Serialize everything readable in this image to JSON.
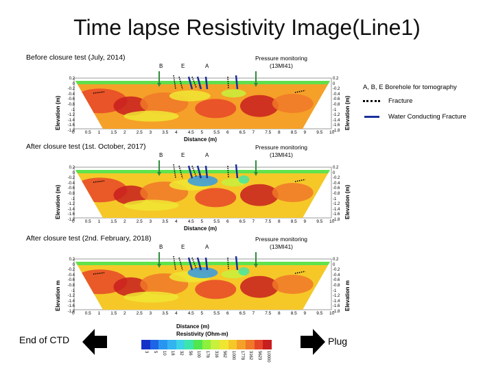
{
  "title": "Time lapse Resistivity Image(Line1)",
  "panels": [
    {
      "caption": "Before closure test (July, 2014)",
      "pressure_monitoring": "Pressure monitoring",
      "station": "(13MI41)",
      "borehole_labels": [
        "B",
        "E",
        "A"
      ],
      "y_axis_label": "Elevation (m)",
      "y_ticks": [
        "0.2",
        "0",
        "-0.2",
        "-0.4",
        "-0.6",
        "-0.8",
        "-1",
        "-1.2",
        "-1.4",
        "-1.6",
        "-1.8"
      ],
      "x_axis_label": "Distance (m)",
      "x_ticks": [
        "0",
        "0.5",
        "1",
        "1.5",
        "2",
        "2.5",
        "3",
        "3.5",
        "4",
        "4.5",
        "5",
        "5.5",
        "6",
        "6.5",
        "7",
        "7.5",
        "8",
        "8.5",
        "9",
        "9.5",
        "10"
      ]
    },
    {
      "caption": "After closure test (1st. October, 2017)",
      "pressure_monitoring": "Pressure monitoring",
      "station": "(13MI41)",
      "borehole_labels": [
        "B",
        "E",
        "A"
      ],
      "y_axis_label": "Elevation (m)",
      "y_ticks": [
        "0.2",
        "0",
        "-0.2",
        "-0.4",
        "-0.6",
        "-0.8",
        "-1",
        "-1.2",
        "-1.4",
        "-1.6",
        "-1.8"
      ],
      "x_axis_label": "Distance (m)",
      "x_ticks": [
        "0",
        "0.5",
        "1",
        "1.5",
        "2",
        "2.5",
        "3",
        "3.5",
        "4",
        "4.5",
        "5",
        "5.5",
        "6",
        "6.5",
        "7",
        "7.5",
        "8",
        "8.5",
        "9",
        "9.5",
        "10"
      ]
    },
    {
      "caption": "After closure test (2nd. February, 2018)",
      "pressure_monitoring": "Pressure monitoring",
      "station": "(13MI41)",
      "borehole_labels": [
        "B",
        "E",
        "A"
      ],
      "y_axis_label": "Elevation m",
      "y_ticks": [
        "0.2",
        "0",
        "-0.2",
        "-0.4",
        "-0.6",
        "-0.8",
        "-1",
        "-1.2",
        "-1.4",
        "-1.6",
        "-1.8"
      ],
      "x_axis_label": "Distance (m)",
      "x_ticks": [
        "0",
        "0.5",
        "1",
        "1.5",
        "2",
        "2.5",
        "3",
        "3.5",
        "4",
        "4.5",
        "5",
        "5.5",
        "6",
        "6.5",
        "7",
        "7.5",
        "8",
        "8.5",
        "9",
        "9.5",
        "10"
      ]
    }
  ],
  "legend": {
    "borehole": "A, B, E  Borehole for tomography",
    "fracture": "Fracture",
    "water_fracture": "Water Conducting Fracture"
  },
  "colorbar": {
    "title": "Resistivity (Ohm-m)",
    "labels": [
      "3",
      "5",
      "10",
      "18",
      "32",
      "56",
      "100",
      "178",
      "316",
      "562",
      "1000",
      "1778",
      "3162",
      "5623",
      "10000"
    ],
    "colors": [
      "#1432c8",
      "#1e64e6",
      "#2896f0",
      "#32b4f0",
      "#3cd2e6",
      "#3ce6aa",
      "#50e650",
      "#8cf03c",
      "#c8f03c",
      "#f0e632",
      "#f5c828",
      "#f5a028",
      "#f07828",
      "#e64628",
      "#c81e1e"
    ]
  },
  "nav": {
    "back_label": "End of CTD",
    "next_label": "Plug"
  },
  "colors": {
    "arrow_green": "#2e8b3a",
    "water_fracture_blue": "#1a2f9c",
    "fracture_black": "#000000"
  }
}
